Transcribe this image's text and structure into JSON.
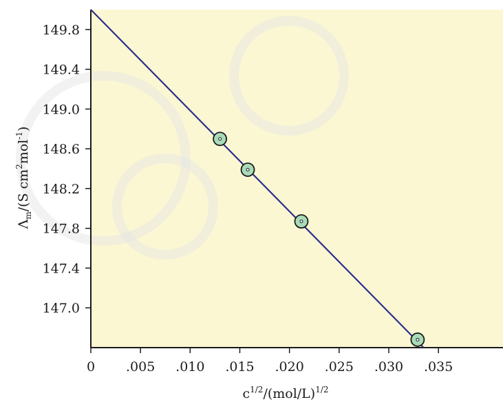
{
  "colors": {
    "plot_background": "#fcf7d3",
    "axis": "#1a1a1a",
    "line": "#2a2e8c",
    "marker_fill": "#a9dbb8",
    "marker_stroke": "#1a1a1a",
    "watermark": "#e6e6e6"
  },
  "chart_data": {
    "type": "scatter",
    "title": "",
    "xlabel": {
      "base": "c",
      "sup1": "1/2",
      "mid": "/(mol/L)",
      "sup2": "1/2"
    },
    "ylabel": {
      "lambda": "Λ",
      "sub": "m",
      "part1": "/(S cm",
      "sup1": "2",
      "part2": "mol",
      "sup2": "-1",
      "part3": ")"
    },
    "xlim": [
      0,
      0.0415
    ],
    "ylim": [
      146.6,
      150.0
    ],
    "x_ticks": [
      0,
      0.005,
      0.01,
      0.015,
      0.02,
      0.025,
      0.03,
      0.035
    ],
    "x_tick_labels": [
      "0",
      ".005",
      ".010",
      ".015",
      ".020",
      ".025",
      ".030",
      ".035"
    ],
    "y_ticks": [
      147.0,
      147.4,
      147.8,
      148.2,
      148.6,
      149.0,
      149.4,
      149.8
    ],
    "y_tick_labels": [
      "147.0",
      "147.4",
      "147.8",
      "148.2",
      "148.6",
      "149.0",
      "149.4",
      "149.8"
    ],
    "grid": false,
    "series": [
      {
        "kind": "points",
        "x": [
          0.013,
          0.0158,
          0.0212,
          0.0329
        ],
        "y": [
          148.7,
          148.39,
          147.87,
          146.68
        ]
      },
      {
        "kind": "fit-line",
        "x": [
          0,
          0.0335
        ],
        "y": [
          150.0,
          146.6
        ]
      }
    ]
  }
}
